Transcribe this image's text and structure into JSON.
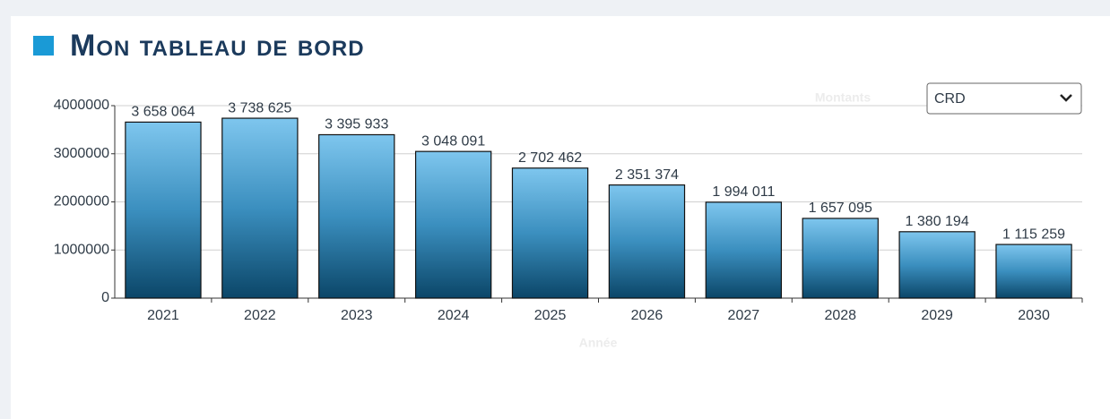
{
  "header": {
    "title": "Mon tableau de bord"
  },
  "select": {
    "value": "CRD"
  },
  "chart_data": {
    "type": "bar",
    "y_label": "Montants",
    "x_label": "Année",
    "categories": [
      "2021",
      "2022",
      "2023",
      "2024",
      "2025",
      "2026",
      "2027",
      "2028",
      "2029",
      "2030"
    ],
    "values": [
      3658064,
      3738625,
      3395933,
      3048091,
      2702462,
      2351374,
      1994011,
      1657095,
      1380194,
      1115259
    ],
    "value_labels": [
      "3 658 064",
      "3 738 625",
      "3 395 933",
      "3 048 091",
      "2 702 462",
      "2 351 374",
      "1 994 011",
      "1 657 095",
      "1 380 194",
      "1 115 259"
    ],
    "color": "#2a7fb0",
    "ylim": [
      0,
      4000000
    ],
    "yticks": [
      0,
      1000000,
      2000000,
      3000000,
      4000000
    ],
    "grid": true
  }
}
